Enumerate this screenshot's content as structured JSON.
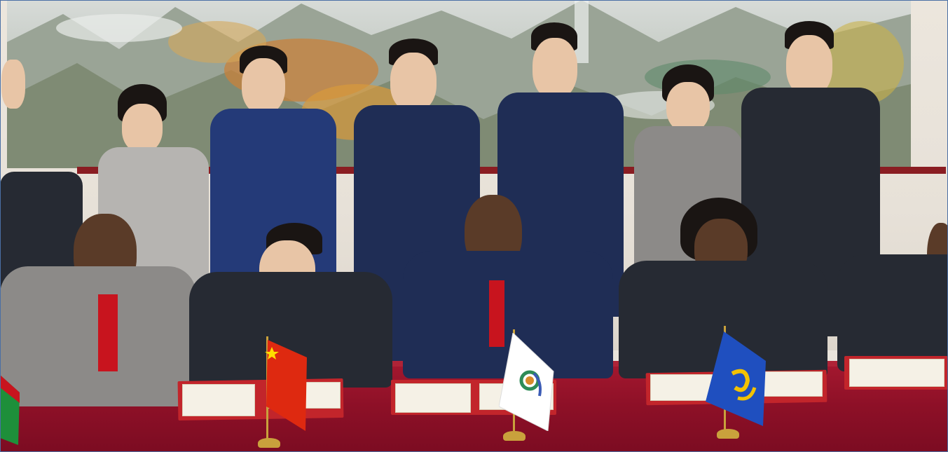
{
  "image": {
    "description_tag": "photo-scene",
    "colors": {
      "table": "#8d1027",
      "painting": "#aeb3a6",
      "wall": "#e7e1d8",
      "china_flag": "#de2910",
      "org_flag": "#ffffff",
      "blue_flag": "#1f4fbf"
    }
  }
}
